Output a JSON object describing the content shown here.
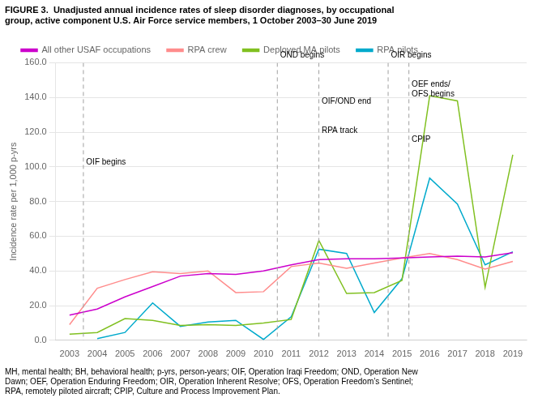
{
  "chart_data": {
    "type": "line",
    "title": "FIGURE 3.  Unadjusted annual incidence rates of sleep disorder diagnoses, by occupational\ngroup, active component U.S. Air Force service members, 1 October 2003–30 June 2019",
    "ylabel": "Incidence rate per 1,000 p-yrs",
    "footnote": "MH, mental health; BH, behavioral health; p-yrs, person-years; OIF, Operation Iraqi Freedom; OND, Operation New\nDawn; OEF, Operation Enduring Freedom; OIR, Operation Inherent Resolve; OFS, Operation Freedom’s Sentinel;\nRPA, remotely piloted aircraft; CPIP, Culture and Process Improvement Plan.",
    "x": [
      2003,
      2004,
      2005,
      2006,
      2007,
      2008,
      2009,
      2010,
      2011,
      2012,
      2013,
      2014,
      2015,
      2016,
      2017,
      2018,
      2019
    ],
    "series": [
      {
        "name": "All other USAF occupations",
        "color": "#cc00cc",
        "values": [
          14.5,
          18.0,
          25.0,
          31.0,
          37.0,
          38.5,
          38.0,
          40.0,
          43.5,
          46.5,
          47.0,
          47.0,
          47.5,
          48.0,
          48.5,
          48.0,
          50.5
        ]
      },
      {
        "name": "RPA crew",
        "color": "#ff8c8c",
        "values": [
          9.0,
          30.0,
          35.0,
          39.5,
          38.5,
          40.0,
          27.5,
          28.0,
          42.5,
          44.5,
          41.5,
          44.5,
          47.5,
          50.0,
          46.5,
          41.0,
          45.5
        ]
      },
      {
        "name": "Deployed MA pilots",
        "color": "#80c020",
        "values": [
          3.5,
          4.5,
          12.5,
          11.5,
          8.5,
          9.0,
          8.5,
          10.0,
          12.0,
          57.5,
          27.0,
          27.5,
          34.5,
          141.0,
          138.0,
          30.5,
          107.0
        ]
      },
      {
        "name": "RPA pilots",
        "color": "#00aacc",
        "values": [
          null,
          1.0,
          4.5,
          21.5,
          8.0,
          10.5,
          11.5,
          0.5,
          13.5,
          52.5,
          50.0,
          16.0,
          35.5,
          93.5,
          78.5,
          43.5,
          51.0
        ]
      }
    ],
    "xlim": [
      2002.5,
      2019.5
    ],
    "xticks": [
      2003,
      2004,
      2005,
      2006,
      2007,
      2008,
      2009,
      2010,
      2011,
      2012,
      2013,
      2014,
      2015,
      2016,
      2017,
      2018,
      2019
    ],
    "ylim": [
      0,
      160
    ],
    "yticks": [
      {
        "value": 0,
        "label": "0.0"
      },
      {
        "value": 20,
        "label": "20.0"
      },
      {
        "value": 40,
        "label": "40.0"
      },
      {
        "value": 60,
        "label": "60.0"
      },
      {
        "value": 80,
        "label": "80.0"
      },
      {
        "value": 100,
        "label": "100.0"
      },
      {
        "value": 120,
        "label": "120.0"
      },
      {
        "value": 140,
        "label": "140.0"
      },
      {
        "value": 160,
        "label": "160.0"
      }
    ],
    "vlines": [
      2003.5,
      2010.5,
      2012.0,
      2014.5,
      2015.25
    ],
    "annotations": [
      {
        "text": "OIF begins",
        "x": 2003.6,
        "y": 105
      },
      {
        "text": "OND begins",
        "x": 2010.6,
        "y": 162
      },
      {
        "text": "OIF/OND end",
        "x": 2012.1,
        "y": 140
      },
      {
        "text": "RPA track",
        "x": 2012.1,
        "y": 123
      },
      {
        "text": "OIR begins",
        "x": 2014.6,
        "y": 162
      },
      {
        "text": "OEF ends/\nOFS begins",
        "x": 2015.35,
        "y": 150
      },
      {
        "text": "CPIP",
        "x": 2015.35,
        "y": 118
      }
    ],
    "grid": "y",
    "legend": "upper left"
  }
}
